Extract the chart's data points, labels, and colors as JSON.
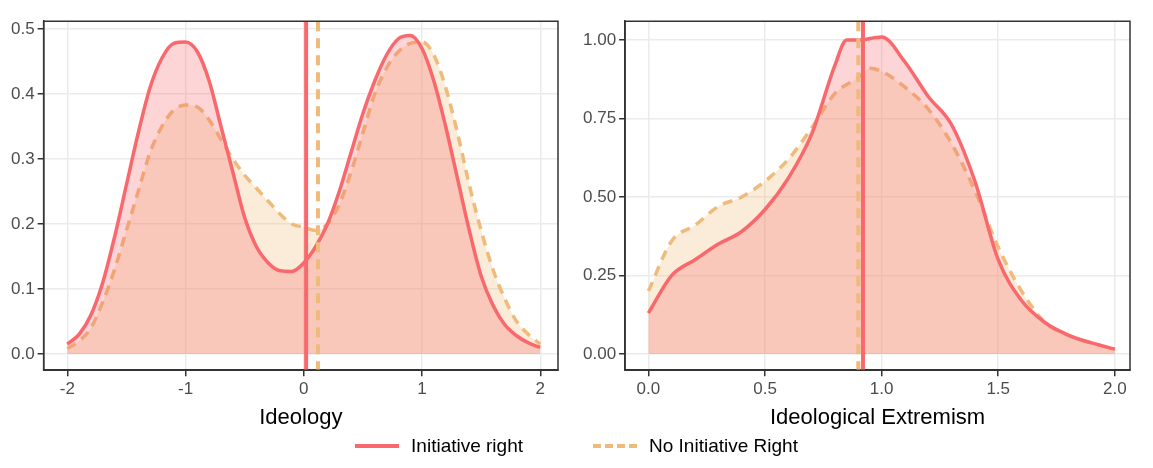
{
  "chart_data": [
    {
      "type": "area",
      "xlabel": "Ideology",
      "xlim": [
        -2.2,
        2.15
      ],
      "xticks": [
        -2,
        -1,
        0,
        1,
        2
      ],
      "ylim": [
        -0.025,
        0.512
      ],
      "yticks": [
        {
          "value": 0,
          "label": "0.0"
        },
        0.1,
        0.2,
        0.3,
        0.4,
        0.5
      ],
      "grid": true,
      "legend": "bottom",
      "x": [
        -2,
        -1.9,
        -1.8,
        -1.7,
        -1.6,
        -1.5,
        -1.4,
        -1.3,
        -1.2,
        -1.1,
        -1.0,
        -0.9,
        -0.8,
        -0.7,
        -0.6,
        -0.5,
        -0.4,
        -0.3,
        -0.2,
        -0.1,
        0,
        0.1,
        0.2,
        0.3,
        0.4,
        0.5,
        0.6,
        0.7,
        0.8,
        0.9,
        1.0,
        1.1,
        1.2,
        1.3,
        1.4,
        1.5,
        1.6,
        1.7,
        1.8,
        1.9,
        2.0
      ],
      "series": [
        {
          "name": "Initiative right",
          "color": "#f8686c",
          "line_style": "solid",
          "values": [
            0.015,
            0.03,
            0.06,
            0.11,
            0.18,
            0.26,
            0.34,
            0.41,
            0.455,
            0.478,
            0.48,
            0.465,
            0.42,
            0.35,
            0.28,
            0.21,
            0.165,
            0.14,
            0.128,
            0.127,
            0.14,
            0.165,
            0.2,
            0.25,
            0.31,
            0.37,
            0.42,
            0.46,
            0.485,
            0.49,
            0.47,
            0.42,
            0.35,
            0.27,
            0.19,
            0.12,
            0.075,
            0.045,
            0.028,
            0.017,
            0.01
          ]
        },
        {
          "name": "No Initiative Right",
          "color": "#efbb7a",
          "line_style": "dashed",
          "values": [
            0.008,
            0.02,
            0.04,
            0.08,
            0.13,
            0.19,
            0.25,
            0.31,
            0.35,
            0.375,
            0.383,
            0.38,
            0.36,
            0.33,
            0.3,
            0.275,
            0.255,
            0.235,
            0.215,
            0.2,
            0.195,
            0.19,
            0.2,
            0.23,
            0.28,
            0.34,
            0.4,
            0.44,
            0.465,
            0.478,
            0.48,
            0.46,
            0.41,
            0.34,
            0.26,
            0.19,
            0.13,
            0.085,
            0.05,
            0.03,
            0.015
          ]
        }
      ],
      "ref_lines": [
        {
          "axis": "x",
          "value": 0.02,
          "color": "#f8686c",
          "line_style": "solid"
        },
        {
          "axis": "x",
          "value": 0.12,
          "color": "#efbb7a",
          "line_style": "dashed"
        }
      ]
    },
    {
      "type": "area",
      "xlabel": "Ideological Extremism",
      "xlim": [
        -0.1,
        2.065
      ],
      "xticks": [
        {
          "value": 0,
          "label": "0.0"
        },
        0.5,
        {
          "value": 1,
          "label": "1.0"
        },
        1.5,
        {
          "value": 2,
          "label": "2.0"
        }
      ],
      "ylim": [
        -0.052,
        1.06
      ],
      "yticks": [
        {
          "value": 0,
          "label": "0.00"
        },
        0.25,
        {
          "value": 0.5,
          "label": "0.50"
        },
        0.75,
        {
          "value": 1,
          "label": "1.00"
        }
      ],
      "grid": true,
      "series": [
        {
          "color": "#f8686c",
          "line_style": "solid",
          "x": [
            0,
            0.1,
            0.2,
            0.3,
            0.4,
            0.5,
            0.6,
            0.7,
            0.8,
            0.85,
            0.9,
            1.0,
            1.1,
            1.2,
            1.3,
            1.4,
            1.5,
            1.6,
            1.7,
            1.8,
            1.9,
            2.0
          ],
          "values": [
            0.13,
            0.25,
            0.3,
            0.35,
            0.39,
            0.46,
            0.56,
            0.7,
            0.92,
            1.0,
            1.0,
            1.01,
            0.93,
            0.82,
            0.73,
            0.55,
            0.3,
            0.17,
            0.1,
            0.06,
            0.035,
            0.015
          ]
        },
        {
          "color": "#efbb7a",
          "line_style": "dashed",
          "x": [
            0,
            0.1,
            0.2,
            0.3,
            0.4,
            0.5,
            0.6,
            0.7,
            0.8,
            0.9,
            0.95,
            1.0,
            1.1,
            1.2,
            1.3,
            1.4,
            1.5,
            1.6,
            1.7,
            1.8,
            1.9,
            2.0
          ],
          "values": [
            0.2,
            0.36,
            0.41,
            0.47,
            0.5,
            0.55,
            0.62,
            0.72,
            0.83,
            0.88,
            0.91,
            0.9,
            0.85,
            0.78,
            0.67,
            0.52,
            0.34,
            0.2,
            0.1,
            0.06,
            0.035,
            0.015
          ]
        }
      ],
      "ref_lines": [
        {
          "axis": "x",
          "value": 0.9,
          "color": "#efbb7a",
          "line_style": "dashed"
        },
        {
          "axis": "x",
          "value": 0.92,
          "color": "#f8686c",
          "line_style": "solid"
        }
      ]
    }
  ]
}
